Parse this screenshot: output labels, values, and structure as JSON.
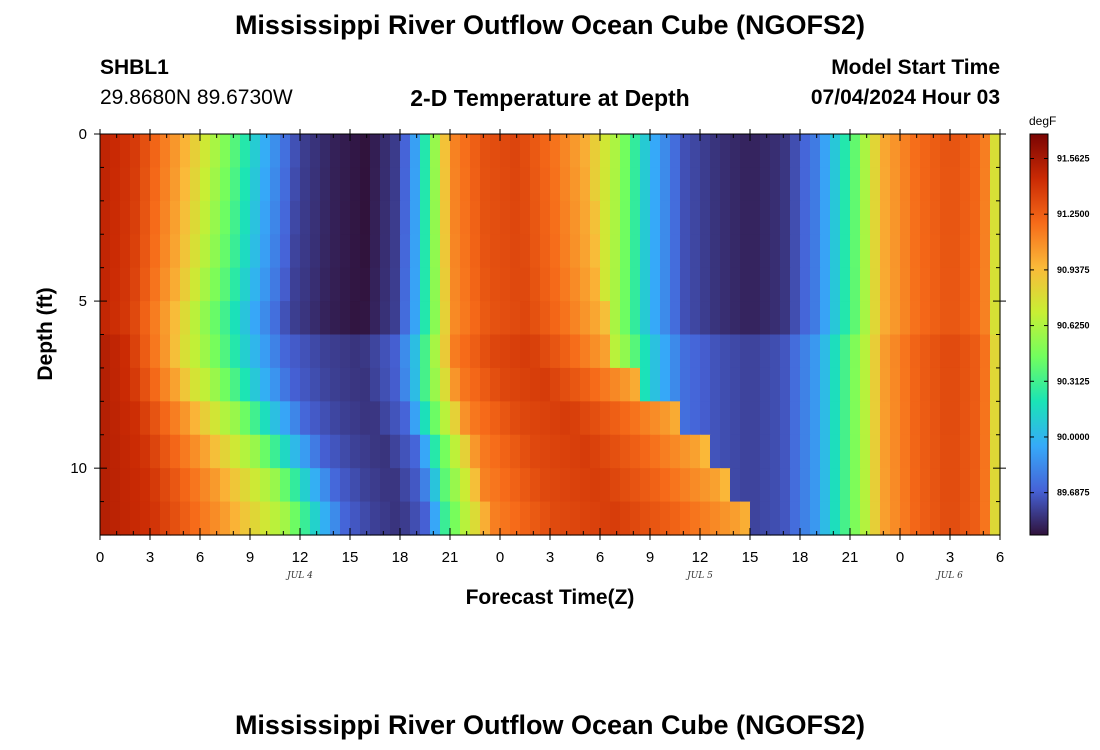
{
  "header": {
    "title": "Mississippi River Outflow Ocean Cube (NGOFS2)",
    "station": "SHBL1",
    "coords": "29.8680N  89.6730W",
    "subtitle": "2-D Temperature at Depth",
    "model_start_label": "Model Start Time",
    "model_start_value": "07/04/2024 Hour 03"
  },
  "footer": {
    "title": "Mississippi River Outflow Ocean Cube (NGOFS2)"
  },
  "chart_data": {
    "type": "heatmap",
    "xlabel": "Forecast Time(Z)",
    "ylabel": "Depth (ft)",
    "x_hours_since_jul4_00z": [
      0,
      54
    ],
    "x_tick_labels": [
      "0",
      "3",
      "6",
      "9",
      "12",
      "15",
      "18",
      "21",
      "0",
      "3",
      "6",
      "9",
      "12",
      "15",
      "18",
      "21",
      "0",
      "3",
      "6"
    ],
    "date_labels": [
      {
        "label": "JUL 4",
        "hour": 12
      },
      {
        "label": "JUL 5",
        "hour": 36
      },
      {
        "label": "JUL 6",
        "hour": 51
      }
    ],
    "y_tick_labels": [
      "0",
      "5",
      "10"
    ],
    "ylim_ft": [
      0,
      12
    ],
    "y_reversed": true,
    "colorbar": {
      "unit": "degF",
      "min": 89.45,
      "max": 91.7,
      "tick_labels": [
        "91.5625",
        "91.2500",
        "90.9375",
        "90.6250",
        "90.3125",
        "90.0000",
        "89.6875"
      ],
      "colors": [
        "#30123b",
        "#4662d7",
        "#36aaf9",
        "#1ae4b6",
        "#72fe5e",
        "#c8ef34",
        "#faba39",
        "#f66b19",
        "#ca2a04",
        "#7a0403"
      ]
    },
    "surface_profile_degF": {
      "hour": [
        0,
        2,
        5,
        8,
        10,
        12,
        14,
        16,
        18,
        19,
        20,
        21,
        23,
        25,
        27,
        29,
        31,
        33,
        35,
        37,
        39,
        41,
        43,
        45,
        47,
        49,
        51,
        53,
        54
      ],
      "value": [
        91.5,
        91.4,
        91.0,
        90.4,
        89.95,
        89.6,
        89.5,
        89.45,
        89.6,
        89.95,
        90.5,
        91.1,
        91.3,
        91.35,
        91.2,
        91.0,
        90.6,
        90.0,
        89.65,
        89.55,
        89.5,
        89.55,
        89.8,
        90.3,
        91.0,
        91.2,
        91.3,
        91.2,
        90.6
      ]
    },
    "transition_hours_by_depth_ft": {
      "depth_ft": [
        0,
        4,
        7,
        8,
        9,
        10,
        11,
        12
      ],
      "warm_end_hour": [
        7,
        6.5,
        5.5,
        7,
        8,
        9.5,
        10.5,
        11
      ],
      "cool_end_hour": [
        19.5,
        19.5,
        19.5,
        19.5,
        20,
        20.5,
        20.5,
        21
      ],
      "warm_end2_hour": [
        29.5,
        30,
        31,
        34,
        36,
        37,
        38.5,
        40
      ]
    }
  }
}
